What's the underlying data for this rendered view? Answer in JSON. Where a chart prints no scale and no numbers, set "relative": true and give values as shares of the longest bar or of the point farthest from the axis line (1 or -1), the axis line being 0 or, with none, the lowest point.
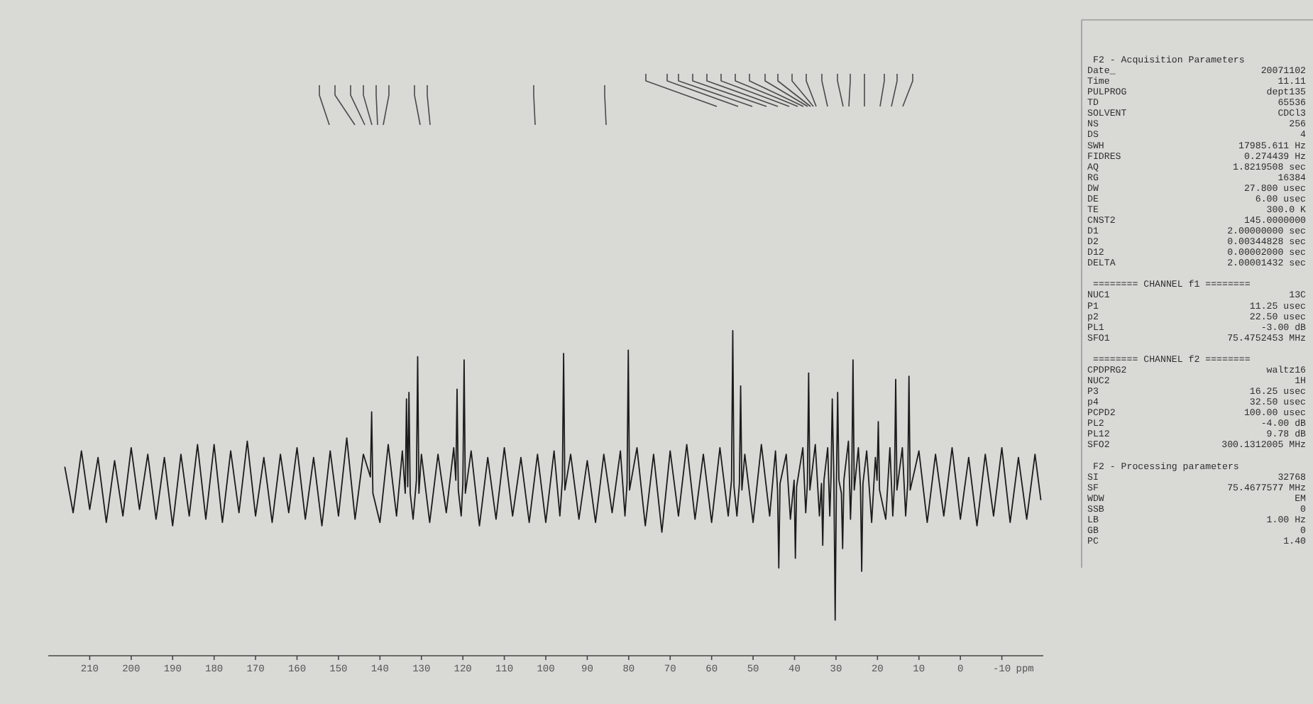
{
  "chart_data": {
    "type": "line",
    "relative": true,
    "color": "#1c1c1c",
    "xlabel": "ppm",
    "xlim": [
      220,
      -20
    ],
    "xticks": [
      210,
      200,
      190,
      180,
      170,
      160,
      150,
      140,
      130,
      120,
      110,
      100,
      90,
      80,
      70,
      60,
      50,
      40,
      30,
      20,
      10,
      0,
      -10
    ],
    "x": [
      216,
      214,
      212,
      210,
      208,
      206,
      204,
      202,
      200,
      198,
      196,
      194,
      192,
      190,
      188,
      186,
      184,
      182,
      180,
      178,
      176,
      174,
      172,
      170,
      168,
      166,
      164,
      162,
      160,
      158,
      156,
      154,
      152,
      150,
      148,
      146,
      144,
      142.3,
      142,
      141.7,
      140,
      138,
      136,
      134.6,
      133.9,
      133.6,
      133.3,
      133,
      132.7,
      132,
      131.2,
      130.9,
      130.6,
      130,
      128,
      126,
      124,
      122.2,
      121.7,
      121.4,
      121.1,
      120.4,
      120,
      119.7,
      119.4,
      118,
      116,
      114,
      112,
      110,
      108,
      106,
      104,
      102,
      100,
      98,
      96.6,
      96,
      95.7,
      95.4,
      94,
      92,
      90,
      88,
      86,
      84,
      82,
      80.9,
      80.4,
      80.1,
      79.8,
      78,
      76,
      74,
      72,
      70,
      68,
      66,
      64,
      62,
      60,
      58,
      56,
      55.2,
      54.9,
      54.6,
      53.9,
      53.3,
      53,
      52.7,
      52,
      50,
      48,
      46,
      44.6,
      44.1,
      43.8,
      43.5,
      42,
      41,
      40.1,
      39.8,
      39.5,
      38,
      37.3,
      36.9,
      36.6,
      36.3,
      35,
      34,
      33.5,
      33.2,
      32.9,
      32,
      31.5,
      31.2,
      30.9,
      30.5,
      30.2,
      29.9,
      29.6,
      29.3,
      28.7,
      28.4,
      28.1,
      27,
      26.5,
      26.2,
      25.9,
      25.6,
      24.6,
      24.1,
      23.8,
      23.5,
      22.6,
      21.4,
      20.5,
      20.1,
      19.8,
      19.5,
      18,
      17,
      16.3,
      15.9,
      15.6,
      15.3,
      14,
      13.2,
      12.7,
      12.4,
      12.1,
      10,
      8,
      6,
      4,
      2,
      0,
      -2,
      -4,
      -6,
      -8,
      -10,
      -12,
      -14,
      -16,
      -18,
      -19.4
    ],
    "values": [
      0.58,
      0.44,
      0.63,
      0.45,
      0.61,
      0.41,
      0.6,
      0.43,
      0.64,
      0.45,
      0.62,
      0.42,
      0.61,
      0.4,
      0.62,
      0.43,
      0.65,
      0.42,
      0.65,
      0.41,
      0.63,
      0.44,
      0.66,
      0.43,
      0.61,
      0.41,
      0.62,
      0.44,
      0.64,
      0.42,
      0.61,
      0.4,
      0.63,
      0.43,
      0.67,
      0.42,
      0.62,
      0.55,
      0.75,
      0.5,
      0.41,
      0.65,
      0.43,
      0.63,
      0.5,
      0.79,
      0.52,
      0.81,
      0.5,
      0.42,
      0.54,
      0.92,
      0.5,
      0.62,
      0.41,
      0.62,
      0.44,
      0.64,
      0.54,
      0.82,
      0.51,
      0.43,
      0.53,
      0.91,
      0.5,
      0.63,
      0.4,
      0.61,
      0.42,
      0.64,
      0.43,
      0.61,
      0.41,
      0.62,
      0.41,
      0.63,
      0.43,
      0.54,
      0.93,
      0.51,
      0.62,
      0.42,
      0.6,
      0.41,
      0.62,
      0.44,
      0.63,
      0.43,
      0.53,
      0.94,
      0.51,
      0.64,
      0.4,
      0.62,
      0.38,
      0.63,
      0.43,
      0.65,
      0.42,
      0.62,
      0.41,
      0.64,
      0.43,
      0.54,
      1,
      0.52,
      0.43,
      0.53,
      0.83,
      0.51,
      0.62,
      0.41,
      0.65,
      0.43,
      0.63,
      0.51,
      0.27,
      0.53,
      0.62,
      0.42,
      0.54,
      0.3,
      0.52,
      0.64,
      0.44,
      0.53,
      0.87,
      0.51,
      0.65,
      0.43,
      0.53,
      0.34,
      0.54,
      0.64,
      0.43,
      0.55,
      0.79,
      0.53,
      0.11,
      0.53,
      0.81,
      0.54,
      0.5,
      0.33,
      0.54,
      0.66,
      0.42,
      0.54,
      0.91,
      0.51,
      0.64,
      0.52,
      0.26,
      0.53,
      0.63,
      0.41,
      0.61,
      0.54,
      0.72,
      0.51,
      0.42,
      0.64,
      0.43,
      0.53,
      0.85,
      0.51,
      0.64,
      0.43,
      0.53,
      0.86,
      0.51,
      0.63,
      0.41,
      0.62,
      0.43,
      0.64,
      0.42,
      0.61,
      0.4,
      0.62,
      0.43,
      0.64,
      0.41,
      0.61,
      0.42,
      0.62,
      0.48
    ],
    "annotations": [
      "F2 - Acquisition Parameters",
      "Date_  20071102",
      "Time  11.11",
      "PULPROG  dept135",
      "TD  65536",
      "SOLVENT  CDCl3",
      "NS  256",
      "DS  4",
      "SWH  17985.611 Hz",
      "FIDRES  0.274439 Hz",
      "AQ  1.8219508 sec",
      "RG  16384",
      "DW  27.800 usec",
      "DE  6.00 usec",
      "TE  300.0 K",
      "CNST2  145.0000000",
      "D1  2.00000000 sec",
      "D2  0.00344828 sec",
      "D12  0.00002000 sec",
      "DELTA  2.00001432 sec",
      "======== CHANNEL f1 ========",
      "NUC1  13C",
      "P1  11.25 usec",
      "p2  22.50 usec",
      "PL1  -3.00 dB",
      "SFO1  75.4752453 MHz",
      "======== CHANNEL f2 ========",
      "CPDPRG2  waltz16",
      "NUC2  1H",
      "P3  16.25 usec",
      "p4  32.50 usec",
      "PCPD2  100.00 usec",
      "PL2  -4.00 dB",
      "PL12  9.78 dB",
      "SFO2  300.1312005 MHz",
      "F2 - Processing parameters",
      "SI  32768",
      "SF  75.4677577 MHz",
      "WDW  EM",
      "SSB  0",
      "LB  1.00 Hz",
      "GB  0",
      "PC  1.40"
    ]
  }
}
